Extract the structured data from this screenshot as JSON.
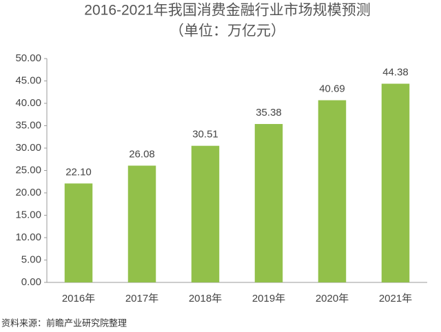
{
  "chart_data": {
    "type": "bar",
    "title": "2016-2021年我国消费金融行业市场规模预测",
    "subtitle": "（单位：万亿元）",
    "source": "资料来源：前瞻产业研究院整理",
    "categories": [
      "2016年",
      "2017年",
      "2018年",
      "2019年",
      "2020年",
      "2021年"
    ],
    "values": [
      22.1,
      26.08,
      30.51,
      35.38,
      40.69,
      44.38
    ],
    "value_labels": [
      "22.10",
      "26.08",
      "30.51",
      "35.38",
      "40.69",
      "44.38"
    ],
    "color": "#92c04a",
    "ylim": [
      0,
      50
    ],
    "yticks": [
      {
        "value": 0,
        "label": "0.00"
      },
      {
        "value": 5,
        "label": "5.00"
      },
      {
        "value": 10,
        "label": "10.00"
      },
      {
        "value": 15,
        "label": "15.00"
      },
      {
        "value": 20,
        "label": "20.00"
      },
      {
        "value": 25,
        "label": "25.00"
      },
      {
        "value": 30,
        "label": "30.00"
      },
      {
        "value": 35,
        "label": "35.00"
      },
      {
        "value": 40,
        "label": "40.00"
      },
      {
        "value": 45,
        "label": "45.00"
      },
      {
        "value": 50,
        "label": "50.00"
      }
    ],
    "grid": false
  }
}
